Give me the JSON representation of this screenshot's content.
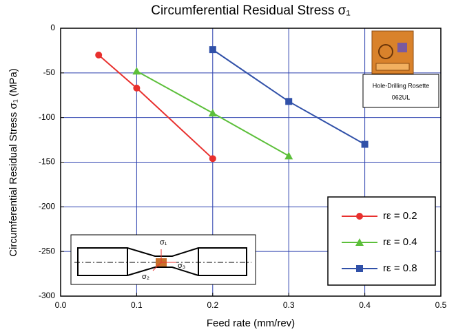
{
  "chart_data": {
    "type": "line",
    "title": "Circumferential Residual Stress σ₁",
    "x_label": "Feed rate (mm/rev)",
    "y_label": "Circumferential Residual Stress σ₁ (MPa)",
    "xlim": [
      0,
      0.5
    ],
    "xticks": [
      {
        "value": 0,
        "label": "0.0"
      },
      0.1,
      0.2,
      0.3,
      0.4,
      0.5
    ],
    "ylim": [
      -300,
      0
    ],
    "yticks": [
      0,
      -50,
      -100,
      -150,
      -200,
      -250,
      -300
    ],
    "grid": true,
    "legend": "lower right",
    "series": [
      {
        "name": "rε = 0.2",
        "color": "#e8302e",
        "marker": "circle",
        "x": [
          0.05,
          0.1,
          0.2
        ],
        "values": [
          -30,
          -67,
          -146
        ]
      },
      {
        "name": "rε = 0.4",
        "color": "#5cbf3a",
        "marker": "triangle",
        "x": [
          0.1,
          0.2,
          0.3
        ],
        "values": [
          -48,
          -95,
          -143
        ]
      },
      {
        "name": "rε = 0.8",
        "color": "#3050a8",
        "marker": "square",
        "x": [
          0.2,
          0.3,
          0.4
        ],
        "values": [
          -24,
          -82,
          -130
        ]
      }
    ],
    "annotations": {
      "rosette": [
        "Hole-Drilling Rosette",
        "062UL"
      ],
      "inset": [
        "σ₁",
        "σ₂",
        "σ₃"
      ]
    }
  }
}
